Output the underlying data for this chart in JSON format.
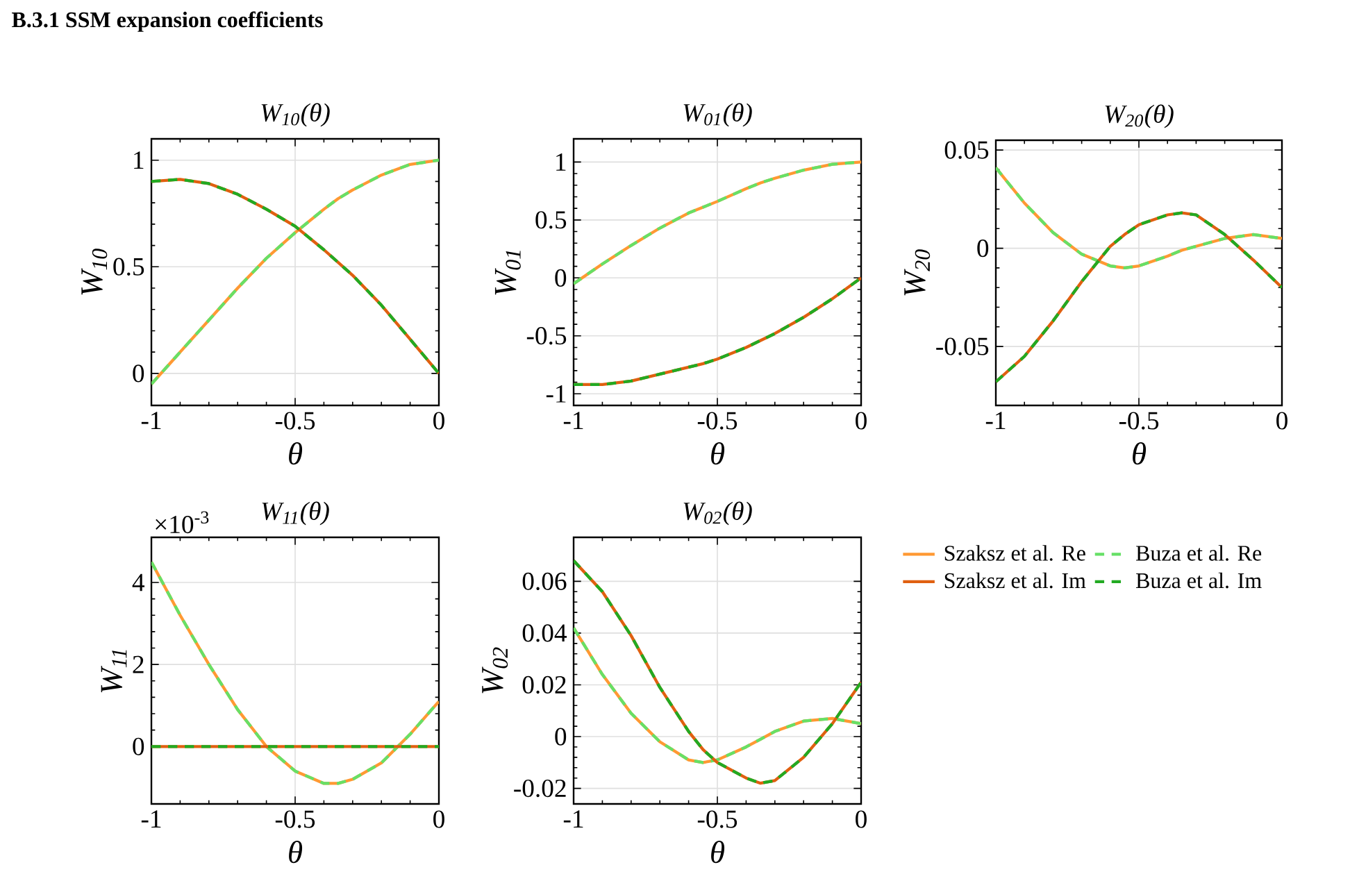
{
  "chart_data": [
    {
      "type": "line",
      "title": "W$_{10}$(θ)",
      "xlabel": "θ",
      "ylabel": "W$_{10}$",
      "annotations": [
        "B.3.1  SSM expansion coefficients"
      ],
      "grid": true,
      "xlim": [
        -1,
        0
      ],
      "xticks": [
        -1,
        -0.5,
        0
      ],
      "ylim": [
        -0.15,
        1.1
      ],
      "yticks": [
        0,
        0.5,
        1
      ],
      "x": [
        -1,
        -0.9,
        -0.8,
        -0.7,
        -0.6,
        -0.55,
        -0.5,
        -0.4,
        -0.35,
        -0.3,
        -0.2,
        -0.1,
        0
      ],
      "series": [
        {
          "color": "#ff9933",
          "line_style": "solid",
          "values": [
            -0.05,
            0.1,
            0.25,
            0.4,
            0.54,
            0.6,
            0.66,
            0.77,
            0.82,
            0.86,
            0.93,
            0.98,
            1.0
          ]
        },
        {
          "color": "#66e066",
          "line_style": "dashed",
          "values": [
            -0.05,
            0.1,
            0.25,
            0.4,
            0.54,
            0.6,
            0.66,
            0.77,
            0.82,
            0.86,
            0.93,
            0.98,
            1.0
          ]
        },
        {
          "color": "#e06010",
          "line_style": "solid",
          "values": [
            0.9,
            0.91,
            0.89,
            0.84,
            0.77,
            0.73,
            0.69,
            0.58,
            0.52,
            0.46,
            0.32,
            0.16,
            0.0
          ]
        },
        {
          "color": "#22aa22",
          "line_style": "dashed",
          "values": [
            0.9,
            0.91,
            0.89,
            0.84,
            0.77,
            0.73,
            0.69,
            0.58,
            0.52,
            0.46,
            0.32,
            0.16,
            0.0
          ]
        }
      ]
    },
    {
      "type": "line",
      "title": "W$_{01}$(θ)",
      "xlabel": "θ",
      "ylabel": "W$_{01}$",
      "grid": true,
      "xlim": [
        -1,
        0
      ],
      "xticks": [
        -1,
        -0.5,
        0
      ],
      "ylim": [
        -1.1,
        1.2
      ],
      "yticks": [
        -1,
        -0.5,
        0,
        0.5,
        1
      ],
      "x": [
        -1,
        -0.9,
        -0.8,
        -0.7,
        -0.6,
        -0.55,
        -0.5,
        -0.4,
        -0.35,
        -0.3,
        -0.2,
        -0.1,
        0
      ],
      "series": [
        {
          "color": "#ff9933",
          "line_style": "solid",
          "values": [
            -0.05,
            0.12,
            0.28,
            0.43,
            0.56,
            0.61,
            0.66,
            0.77,
            0.82,
            0.86,
            0.93,
            0.98,
            1.0
          ]
        },
        {
          "color": "#66e066",
          "line_style": "dashed",
          "values": [
            -0.05,
            0.12,
            0.28,
            0.43,
            0.56,
            0.61,
            0.66,
            0.77,
            0.82,
            0.86,
            0.93,
            0.98,
            1.0
          ]
        },
        {
          "color": "#e06010",
          "line_style": "solid",
          "values": [
            -0.92,
            -0.92,
            -0.89,
            -0.83,
            -0.77,
            -0.74,
            -0.7,
            -0.6,
            -0.54,
            -0.48,
            -0.34,
            -0.18,
            0.0
          ]
        },
        {
          "color": "#22aa22",
          "line_style": "dashed",
          "values": [
            -0.92,
            -0.92,
            -0.89,
            -0.83,
            -0.77,
            -0.74,
            -0.7,
            -0.6,
            -0.54,
            -0.48,
            -0.34,
            -0.18,
            0.0
          ]
        }
      ]
    },
    {
      "type": "line",
      "title": "W$_{20}$(θ)",
      "xlabel": "θ",
      "ylabel": "W$_{20}$",
      "grid": true,
      "xlim": [
        -1,
        0
      ],
      "xticks": [
        -1,
        -0.5,
        0
      ],
      "ylim": [
        -0.08,
        0.055
      ],
      "yticks": [
        -0.05,
        0,
        0.05
      ],
      "x": [
        -1,
        -0.9,
        -0.8,
        -0.7,
        -0.6,
        -0.55,
        -0.5,
        -0.4,
        -0.35,
        -0.3,
        -0.2,
        -0.1,
        0
      ],
      "series": [
        {
          "color": "#ff9933",
          "line_style": "solid",
          "values": [
            0.041,
            0.023,
            0.008,
            -0.003,
            -0.009,
            -0.01,
            -0.009,
            -0.004,
            -0.001,
            0.001,
            0.005,
            0.007,
            0.005
          ]
        },
        {
          "color": "#66e066",
          "line_style": "dashed",
          "values": [
            0.041,
            0.023,
            0.008,
            -0.003,
            -0.009,
            -0.01,
            -0.009,
            -0.004,
            -0.001,
            0.001,
            0.005,
            0.007,
            0.005
          ]
        },
        {
          "color": "#e06010",
          "line_style": "solid",
          "values": [
            -0.068,
            -0.055,
            -0.037,
            -0.017,
            0.001,
            0.007,
            0.012,
            0.017,
            0.018,
            0.017,
            0.007,
            -0.006,
            -0.02
          ]
        },
        {
          "color": "#22aa22",
          "line_style": "dashed",
          "values": [
            -0.068,
            -0.055,
            -0.037,
            -0.017,
            0.001,
            0.007,
            0.012,
            0.017,
            0.018,
            0.017,
            0.007,
            -0.006,
            -0.02
          ]
        }
      ]
    },
    {
      "type": "line",
      "title": "W$_{11}$(θ)",
      "xlabel": "θ",
      "ylabel": "W$_{11}$",
      "annotations": [
        "×10$^{-3}$"
      ],
      "grid": true,
      "xlim": [
        -1,
        0
      ],
      "xticks": [
        -1,
        -0.5,
        0
      ],
      "ylim": [
        -1.4,
        5.1
      ],
      "yticks": [
        0,
        2,
        4
      ],
      "x": [
        -1,
        -0.9,
        -0.8,
        -0.7,
        -0.6,
        -0.55,
        -0.5,
        -0.4,
        -0.35,
        -0.3,
        -0.2,
        -0.1,
        0
      ],
      "series": [
        {
          "color": "#ff9933",
          "line_style": "solid",
          "values": [
            4.5,
            3.2,
            2.0,
            0.9,
            0.0,
            -0.3,
            -0.6,
            -0.9,
            -0.9,
            -0.8,
            -0.4,
            0.3,
            1.1
          ]
        },
        {
          "color": "#66e066",
          "line_style": "dashed",
          "values": [
            4.5,
            3.2,
            2.0,
            0.9,
            0.0,
            -0.3,
            -0.6,
            -0.9,
            -0.9,
            -0.8,
            -0.4,
            0.3,
            1.1
          ]
        },
        {
          "color": "#e06010",
          "line_style": "solid",
          "values": [
            0,
            0,
            0,
            0,
            0,
            0,
            0,
            0,
            0,
            0,
            0,
            0,
            0
          ]
        },
        {
          "color": "#22aa22",
          "line_style": "dashed",
          "values": [
            0,
            0,
            0,
            0,
            0,
            0,
            0,
            0,
            0,
            0,
            0,
            0,
            0
          ]
        }
      ]
    },
    {
      "type": "line",
      "title": "W$_{02}$(θ)",
      "xlabel": "θ",
      "ylabel": "W$_{02}$",
      "grid": true,
      "legend": "right",
      "xlim": [
        -1,
        0
      ],
      "xticks": [
        -1,
        -0.5,
        0
      ],
      "ylim": [
        -0.026,
        0.077
      ],
      "yticks": [
        -0.02,
        0,
        0.02,
        0.04,
        0.06
      ],
      "x": [
        -1,
        -0.9,
        -0.8,
        -0.7,
        -0.6,
        -0.55,
        -0.5,
        -0.4,
        -0.35,
        -0.3,
        -0.2,
        -0.1,
        0
      ],
      "series": [
        {
          "name": "Szaksz et al. Re",
          "color": "#ff9933",
          "line_style": "solid",
          "values": [
            0.042,
            0.024,
            0.009,
            -0.002,
            -0.009,
            -0.01,
            -0.009,
            -0.004,
            -0.001,
            0.002,
            0.006,
            0.007,
            0.005
          ]
        },
        {
          "name": "Buza et al. Re",
          "color": "#66e066",
          "line_style": "dashed",
          "values": [
            0.042,
            0.024,
            0.009,
            -0.002,
            -0.009,
            -0.01,
            -0.009,
            -0.004,
            -0.001,
            0.002,
            0.006,
            0.007,
            0.005
          ]
        },
        {
          "name": "Szaksz et al. Im",
          "color": "#e06010",
          "line_style": "solid",
          "values": [
            0.068,
            0.056,
            0.039,
            0.019,
            0.002,
            -0.005,
            -0.01,
            -0.016,
            -0.018,
            -0.017,
            -0.008,
            0.005,
            0.021
          ]
        },
        {
          "name": "Buza et al. Im",
          "color": "#22aa22",
          "line_style": "dashed",
          "values": [
            0.068,
            0.056,
            0.039,
            0.019,
            0.002,
            -0.005,
            -0.01,
            -0.016,
            -0.018,
            -0.017,
            -0.008,
            0.005,
            0.021
          ]
        }
      ]
    }
  ]
}
